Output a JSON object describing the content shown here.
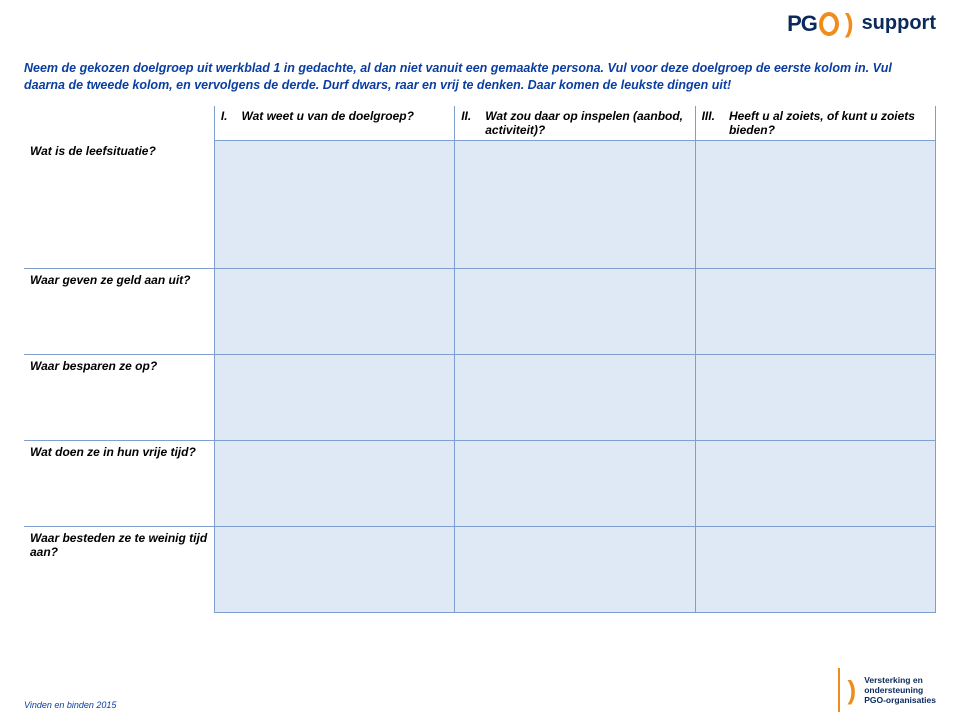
{
  "logo": {
    "pg": "PG",
    "support": "support"
  },
  "intro": "Neem de gekozen doelgroep uit werkblad 1 in gedachte, al dan niet vanuit een gemaakte persona. Vul voor deze doelgroep de eerste kolom in. Vul daarna de tweede kolom, en vervolgens de derde. Durf dwars, raar en vrij te denken. Daar komen de leukste dingen uit!",
  "table": {
    "columns": [
      {
        "num": "I.",
        "text": "Wat weet u van de doelgroep?"
      },
      {
        "num": "II.",
        "text": "Wat zou daar op inspelen (aanbod, activiteit)?"
      },
      {
        "num": "III.",
        "text": "Heeft u al zoiets, of kunt u zoiets bieden?"
      }
    ],
    "rows": [
      "Wat is de leefsituatie?",
      "Waar geven ze geld aan uit?",
      "Waar besparen ze op?",
      "Wat doen ze in hun vrije tijd?",
      "Waar besteden ze te weinig tijd aan?"
    ],
    "header_bg": "#ffffff",
    "data_bg": "#dfe8f5",
    "border_color": "#7f9fd0",
    "intro_color": "#0a3ea0"
  },
  "footer": {
    "left": "Vinden en binden 2015",
    "right_line1": "Versterking en",
    "right_line2": "ondersteuning",
    "right_line3": "PGO-organisaties"
  }
}
